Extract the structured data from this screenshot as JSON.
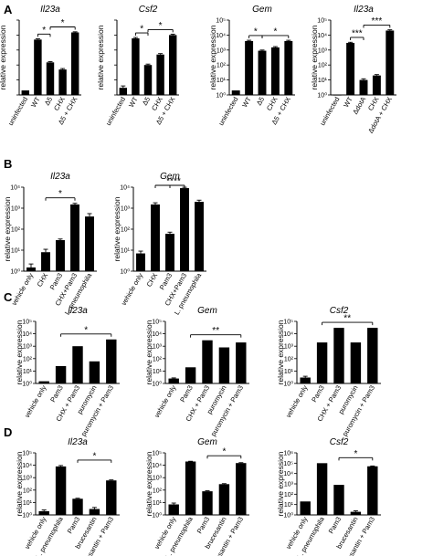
{
  "panels": [
    {
      "label": "A",
      "name": "panel-a"
    },
    {
      "label": "B",
      "name": "panel-b"
    },
    {
      "label": "C",
      "name": "panel-c"
    },
    {
      "label": "D",
      "name": "panel-d"
    }
  ],
  "chart_data": [
    {
      "panel": "A",
      "type": "bar",
      "scale": "log",
      "title": "Il23a",
      "ylabel": "relative expression",
      "categories": [
        "uninfected",
        "WT",
        "Δ5",
        "CHX",
        "Δ5 + CHX"
      ],
      "values": [
        2,
        5000,
        150,
        50,
        15000
      ],
      "errors": [
        0,
        600,
        20,
        8,
        1500
      ],
      "ylim": [
        1,
        100000
      ],
      "ticks": [],
      "sig": [
        {
          "from": 1,
          "to": 2,
          "label": "*"
        },
        {
          "from": 2,
          "to": 4,
          "label": "*"
        }
      ]
    },
    {
      "panel": "A",
      "type": "bar",
      "scale": "log",
      "title": "Csf2",
      "ylabel": "relative expression",
      "categories": [
        "uninfected",
        "WT",
        "Δ5",
        "CHX",
        "Δ5 + CHX"
      ],
      "values": [
        3,
        6000,
        100,
        500,
        10000
      ],
      "errors": [
        1,
        900,
        15,
        80,
        1500
      ],
      "ylim": [
        1,
        100000
      ],
      "ticks": [],
      "sig": [
        {
          "from": 1,
          "to": 2,
          "label": "*"
        },
        {
          "from": 2,
          "to": 4,
          "label": "*"
        }
      ]
    },
    {
      "panel": "A",
      "type": "bar",
      "scale": "log",
      "title": "Gem",
      "ylabel": "relative expression",
      "categories": [
        "uninfected",
        "WT",
        "Δ5",
        "CHX",
        "Δ5 + CHX"
      ],
      "values": [
        2,
        4000,
        900,
        1500,
        4000
      ],
      "errors": [
        0,
        500,
        100,
        200,
        500
      ],
      "ylim": [
        1,
        100000
      ],
      "ticks": [
        "10⁰",
        "10¹",
        "10²",
        "10³",
        "10⁴",
        "10⁵"
      ],
      "sig": [
        {
          "from": 1,
          "to": 2,
          "label": "*"
        },
        {
          "from": 2,
          "to": 4,
          "label": "*"
        }
      ]
    },
    {
      "panel": "A",
      "type": "bar",
      "scale": "log",
      "title": "Il23a",
      "ylabel": "relative expression",
      "categories": [
        "uninfected",
        "WT",
        "ΔdotA",
        "CHX",
        "ΔdotA + CHX"
      ],
      "values": [
        1,
        3000,
        10,
        20,
        20000
      ],
      "errors": [
        0,
        300,
        2,
        3,
        2500
      ],
      "ylim": [
        1,
        100000
      ],
      "ticks": [
        "10⁰",
        "10¹",
        "10²",
        "10³",
        "10⁴",
        "10⁵"
      ],
      "sig": [
        {
          "from": 1,
          "to": 2,
          "label": "***"
        },
        {
          "from": 2,
          "to": 4,
          "label": "***"
        }
      ]
    },
    {
      "panel": "B",
      "type": "bar",
      "scale": "log",
      "title": "Il23a",
      "ylabel": "relative expression",
      "categories": [
        "vehicle only",
        "CHX",
        "Pam3",
        "CHX+Pam3",
        "L. pneumophila"
      ],
      "values": [
        1.5,
        8,
        30,
        1500,
        400
      ],
      "errors": [
        0.7,
        3,
        4,
        200,
        150
      ],
      "ylim": [
        1,
        10000
      ],
      "ticks": [
        "10⁰",
        "10¹",
        "10²",
        "10³",
        "10⁴"
      ],
      "sig": [
        {
          "from": 1,
          "to": 3,
          "label": "*"
        }
      ]
    },
    {
      "panel": "B",
      "type": "bar",
      "scale": "log",
      "title": "Gem",
      "ylabel": "relative expression",
      "categories": [
        "vehicle only",
        "CHX",
        "Pam3",
        "CHX+Pam3",
        "L. pneumophila"
      ],
      "values": [
        7,
        1500,
        60,
        9000,
        2000
      ],
      "errors": [
        2,
        300,
        12,
        900,
        400
      ],
      "ylim": [
        1,
        10000
      ],
      "ticks": [
        "10⁰",
        "10¹",
        "10²",
        "10³",
        "10⁴"
      ],
      "sig": [
        {
          "from": 2,
          "to": 3,
          "label": "**"
        },
        {
          "from": 1,
          "to": 3,
          "label": "**"
        }
      ]
    },
    {
      "panel": "C",
      "type": "bar",
      "scale": "log",
      "title": "Il23a",
      "ylabel": "relative expression",
      "categories": [
        "vehicle only",
        "Pam3",
        "CHX + Pam3",
        "puromycin",
        "puromycin + Pam3"
      ],
      "values": [
        1.5,
        25,
        1000,
        60,
        3500
      ],
      "errors": [
        0,
        0,
        0,
        0,
        0
      ],
      "ylim": [
        1,
        100000
      ],
      "ticks": [
        "10⁰",
        "10¹",
        "10²",
        "10³",
        "10⁴",
        "10⁵"
      ],
      "sig": [
        {
          "from": 1,
          "to": 4,
          "label": "*"
        }
      ]
    },
    {
      "panel": "C",
      "type": "bar",
      "scale": "log",
      "title": "Gem",
      "ylabel": "relative expression",
      "categories": [
        "vehicle only",
        "Pam3",
        "CHX + Pam3",
        "puromycin",
        "puromycin + Pam3"
      ],
      "values": [
        2.5,
        20,
        3000,
        800,
        2000
      ],
      "errors": [
        0.3,
        0,
        0,
        0,
        0
      ],
      "ylim": [
        1,
        100000
      ],
      "ticks": [
        "10⁰",
        "10¹",
        "10²",
        "10³",
        "10⁴",
        "10⁵"
      ],
      "sig": [
        {
          "from": 1,
          "to": 4,
          "label": "**"
        }
      ]
    },
    {
      "panel": "C",
      "type": "bar",
      "scale": "log",
      "title": "Csf2",
      "ylabel": "relative expression",
      "categories": [
        "vehicle only",
        "Pam3",
        "CHX + Pam3",
        "puromycin",
        "puromycin + Pam3"
      ],
      "values": [
        3,
        2000,
        30000,
        2000,
        30000
      ],
      "errors": [
        0.8,
        0,
        0,
        0,
        0
      ],
      "ylim": [
        1,
        100000
      ],
      "ticks": [
        "10⁰",
        "10¹",
        "10²",
        "10³",
        "10⁴",
        "10⁵"
      ],
      "sig": [
        {
          "from": 1,
          "to": 4,
          "label": "**"
        }
      ]
    },
    {
      "panel": "D",
      "type": "bar",
      "scale": "log",
      "title": "Il23a",
      "ylabel": "relative expression",
      "categories": [
        "vehicle only",
        "L. pneumophila",
        "Pam3",
        "brucesantin",
        "brucesantin + Pam3"
      ],
      "values": [
        2,
        8000,
        20,
        3,
        600
      ],
      "errors": [
        0.5,
        1500,
        2,
        1,
        60
      ],
      "ylim": [
        1,
        100000
      ],
      "ticks": [
        "10⁰",
        "10¹",
        "10²",
        "10³",
        "10⁴",
        "10⁵"
      ],
      "sig": [
        {
          "from": 2,
          "to": 4,
          "label": "*"
        }
      ]
    },
    {
      "panel": "D",
      "type": "bar",
      "scale": "log",
      "title": "Gem",
      "ylabel": "relative expression",
      "categories": [
        "vehicle only",
        "L. pneumophila",
        "Pam3",
        "brucesantin",
        "brucesantin + Pam3"
      ],
      "values": [
        7,
        20000,
        80,
        300,
        15000
      ],
      "errors": [
        2,
        1000,
        8,
        30,
        1200
      ],
      "ylim": [
        1,
        100000
      ],
      "ticks": [
        "10⁰",
        "10¹",
        "10²",
        "10³",
        "10⁴",
        "10⁵"
      ],
      "sig": [
        {
          "from": 2,
          "to": 4,
          "label": "*"
        }
      ]
    },
    {
      "panel": "D",
      "type": "bar",
      "scale": "log",
      "title": "Csf2",
      "ylabel": "relative expression",
      "categories": [
        "vehicle only",
        "L. pneumophila",
        "Pam3",
        "brucesantin",
        "brucesantin + Pam3"
      ],
      "values": [
        20,
        100000,
        800,
        2,
        50000
      ],
      "errors": [
        0,
        0,
        0,
        0.5,
        4000
      ],
      "ylim": [
        1,
        1000000
      ],
      "ticks": [
        "10⁰",
        "10¹",
        "10²",
        "10³",
        "10⁴",
        "10⁵",
        "10⁶"
      ],
      "sig": [
        {
          "from": 2,
          "to": 4,
          "label": "*"
        }
      ]
    }
  ]
}
